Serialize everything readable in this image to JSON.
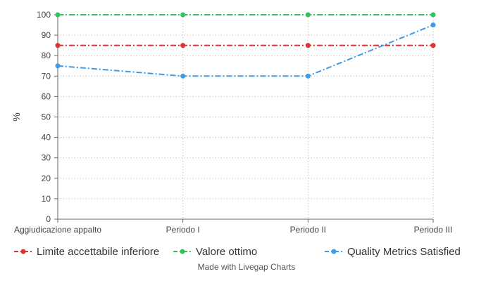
{
  "chart_data": {
    "type": "line",
    "categories": [
      "Aggiudicazione appalto",
      "Periodo I",
      "Periodo II",
      "Periodo III"
    ],
    "ylabel": "%",
    "ylim": [
      0,
      100
    ],
    "yticks": [
      0,
      10,
      20,
      30,
      40,
      50,
      60,
      70,
      80,
      90,
      100
    ],
    "grid": true,
    "legend_position": "bottom",
    "series": [
      {
        "name": "Limite accettabile inferiore",
        "values": [
          85,
          85,
          85,
          85
        ],
        "color": "#e03131"
      },
      {
        "name": "Valore ottimo",
        "values": [
          100,
          100,
          100,
          100
        ],
        "color": "#2fc35d"
      },
      {
        "name": "Quality Metrics Satisfied",
        "values": [
          75,
          70,
          70,
          95
        ],
        "color": "#3d9be8"
      }
    ]
  },
  "credit": "Made with Livegap Charts"
}
